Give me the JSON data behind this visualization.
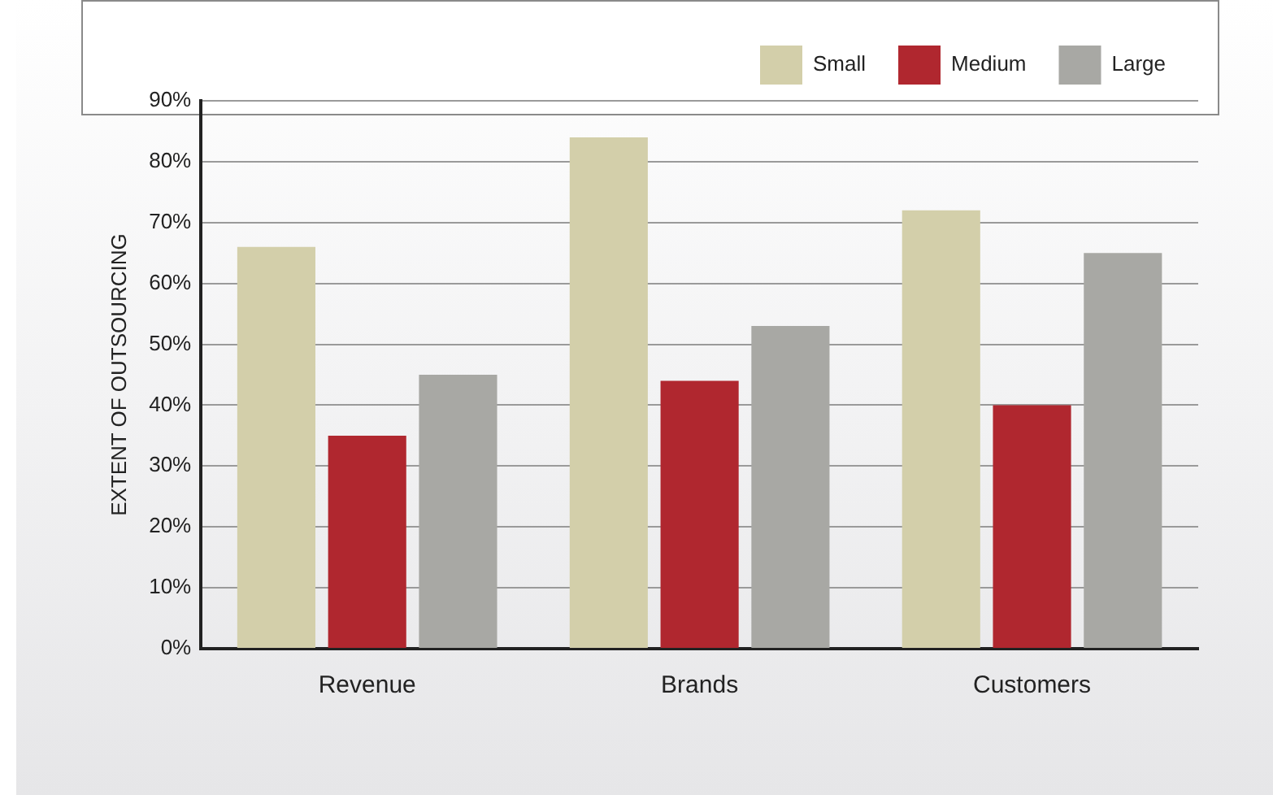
{
  "chart_data": {
    "type": "bar",
    "ylabel": "EXTENT OF OUTSOURCING",
    "categories": [
      "Revenue",
      "Brands",
      "Customers"
    ],
    "series": [
      {
        "name": "Small",
        "color": "#d3cfaa",
        "values": [
          66,
          84,
          72
        ]
      },
      {
        "name": "Medium",
        "color": "#b0272f",
        "values": [
          35,
          44,
          40
        ]
      },
      {
        "name": "Large",
        "color": "#a8a8a4",
        "values": [
          45,
          53,
          65
        ]
      }
    ],
    "ylim": [
      0,
      90
    ],
    "yticks": [
      {
        "value": 0,
        "label": "0%"
      },
      {
        "value": 10,
        "label": "10%"
      },
      {
        "value": 20,
        "label": "20%"
      },
      {
        "value": 30,
        "label": "30%"
      },
      {
        "value": 40,
        "label": "40%"
      },
      {
        "value": 50,
        "label": "50%"
      },
      {
        "value": 60,
        "label": "60%"
      },
      {
        "value": 70,
        "label": "70%"
      },
      {
        "value": 80,
        "label": "80%"
      },
      {
        "value": 90,
        "label": "90%"
      }
    ],
    "grid": "y",
    "legend": "top right"
  }
}
